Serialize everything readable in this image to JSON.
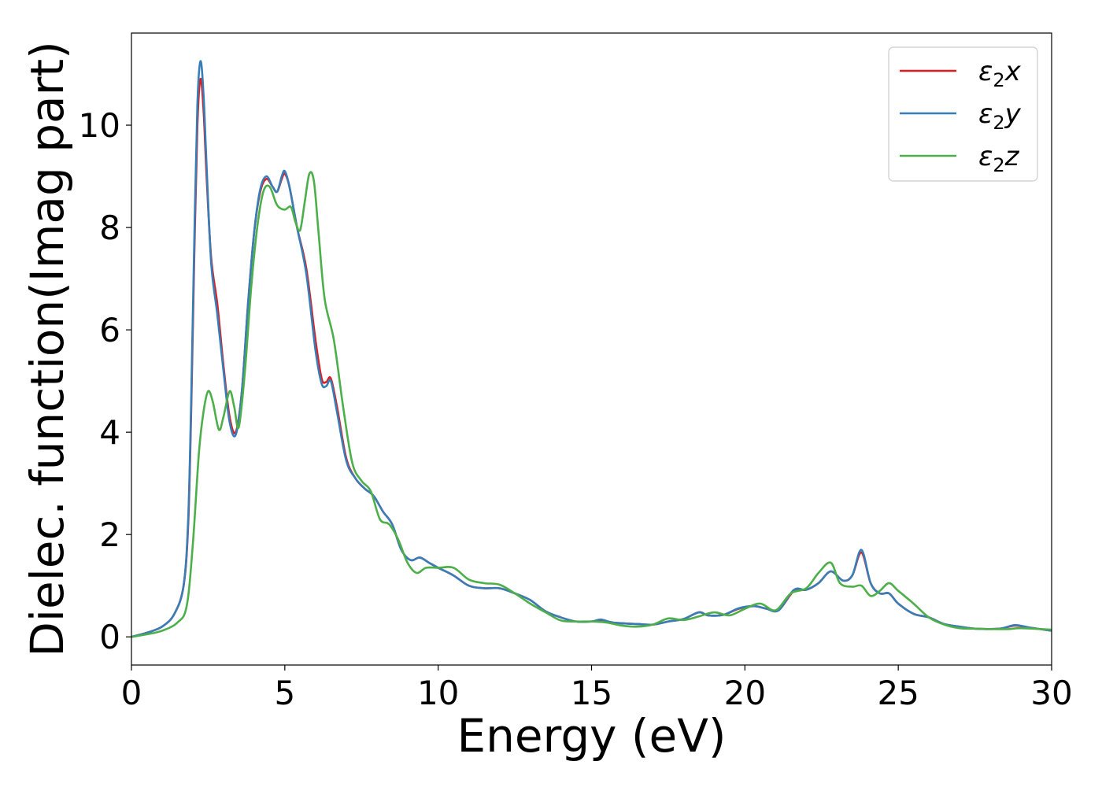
{
  "chart_data": {
    "type": "line",
    "title": "",
    "xlabel": "Energy (eV)",
    "ylabel": "Dielec. function(Imag part)",
    "xlim": [
      0,
      30
    ],
    "ylim": [
      -0.55,
      11.8
    ],
    "xticks": [
      0,
      5,
      10,
      15,
      20,
      25,
      30
    ],
    "yticks": [
      0,
      2,
      4,
      6,
      8,
      10
    ],
    "grid": false,
    "legend_position": "top-right",
    "series": [
      {
        "name": "ε₂x",
        "label_main": "ε",
        "label_sub": "2",
        "label_axis": "x",
        "color": "#e41a1c",
        "points": [
          [
            0,
            0.0
          ],
          [
            0.5,
            0.08
          ],
          [
            1.0,
            0.2
          ],
          [
            1.4,
            0.45
          ],
          [
            1.7,
            1.0
          ],
          [
            1.85,
            2.2
          ],
          [
            1.95,
            4.5
          ],
          [
            2.05,
            7.5
          ],
          [
            2.15,
            10.0
          ],
          [
            2.25,
            10.9
          ],
          [
            2.35,
            10.3
          ],
          [
            2.45,
            9.0
          ],
          [
            2.6,
            7.4
          ],
          [
            2.8,
            6.5
          ],
          [
            3.0,
            5.3
          ],
          [
            3.2,
            4.3
          ],
          [
            3.4,
            4.0
          ],
          [
            3.6,
            4.8
          ],
          [
            3.8,
            6.5
          ],
          [
            4.0,
            7.9
          ],
          [
            4.2,
            8.7
          ],
          [
            4.4,
            8.95
          ],
          [
            4.6,
            8.8
          ],
          [
            4.75,
            8.7
          ],
          [
            4.9,
            8.95
          ],
          [
            5.0,
            9.05
          ],
          [
            5.15,
            8.8
          ],
          [
            5.4,
            8.0
          ],
          [
            5.7,
            7.2
          ],
          [
            6.0,
            5.8
          ],
          [
            6.2,
            5.05
          ],
          [
            6.35,
            4.98
          ],
          [
            6.5,
            5.05
          ],
          [
            6.7,
            4.5
          ],
          [
            7.0,
            3.5
          ],
          [
            7.3,
            3.1
          ],
          [
            7.6,
            2.9
          ],
          [
            7.9,
            2.75
          ],
          [
            8.2,
            2.45
          ],
          [
            8.5,
            2.2
          ],
          [
            8.8,
            1.7
          ],
          [
            9.1,
            1.5
          ],
          [
            9.4,
            1.55
          ],
          [
            9.7,
            1.45
          ],
          [
            10.0,
            1.35
          ],
          [
            10.5,
            1.2
          ],
          [
            11.0,
            1.0
          ],
          [
            11.5,
            0.95
          ],
          [
            12.0,
            0.95
          ],
          [
            12.5,
            0.85
          ],
          [
            13.0,
            0.72
          ],
          [
            13.5,
            0.5
          ],
          [
            14.0,
            0.38
          ],
          [
            14.5,
            0.3
          ],
          [
            15.0,
            0.3
          ],
          [
            15.3,
            0.33
          ],
          [
            15.7,
            0.28
          ],
          [
            16.5,
            0.25
          ],
          [
            17.0,
            0.24
          ],
          [
            17.5,
            0.3
          ],
          [
            18.0,
            0.35
          ],
          [
            18.5,
            0.48
          ],
          [
            18.8,
            0.42
          ],
          [
            19.3,
            0.43
          ],
          [
            19.8,
            0.55
          ],
          [
            20.3,
            0.6
          ],
          [
            20.7,
            0.55
          ],
          [
            21.1,
            0.52
          ],
          [
            21.6,
            0.9
          ],
          [
            22.0,
            0.92
          ],
          [
            22.4,
            1.05
          ],
          [
            22.8,
            1.28
          ],
          [
            23.2,
            1.1
          ],
          [
            23.5,
            1.2
          ],
          [
            23.8,
            1.65
          ],
          [
            24.1,
            1.05
          ],
          [
            24.4,
            0.85
          ],
          [
            24.7,
            0.85
          ],
          [
            25.0,
            0.65
          ],
          [
            25.5,
            0.45
          ],
          [
            26.0,
            0.38
          ],
          [
            26.5,
            0.25
          ],
          [
            27.0,
            0.2
          ],
          [
            27.5,
            0.16
          ],
          [
            28.3,
            0.16
          ],
          [
            28.8,
            0.22
          ],
          [
            29.3,
            0.18
          ],
          [
            30.0,
            0.12
          ]
        ]
      },
      {
        "name": "ε₂y",
        "label_main": "ε",
        "label_sub": "2",
        "label_axis": "y",
        "color": "#377eb8",
        "points": [
          [
            0,
            0.0
          ],
          [
            0.5,
            0.08
          ],
          [
            1.0,
            0.2
          ],
          [
            1.4,
            0.45
          ],
          [
            1.7,
            1.0
          ],
          [
            1.85,
            2.3
          ],
          [
            1.95,
            4.7
          ],
          [
            2.05,
            7.8
          ],
          [
            2.15,
            10.4
          ],
          [
            2.25,
            11.25
          ],
          [
            2.35,
            10.6
          ],
          [
            2.45,
            9.2
          ],
          [
            2.6,
            7.3
          ],
          [
            2.8,
            6.3
          ],
          [
            3.0,
            5.2
          ],
          [
            3.2,
            4.2
          ],
          [
            3.4,
            3.95
          ],
          [
            3.6,
            4.8
          ],
          [
            3.8,
            6.5
          ],
          [
            4.0,
            7.9
          ],
          [
            4.2,
            8.75
          ],
          [
            4.4,
            9.0
          ],
          [
            4.6,
            8.8
          ],
          [
            4.75,
            8.7
          ],
          [
            4.9,
            9.0
          ],
          [
            5.0,
            9.1
          ],
          [
            5.15,
            8.8
          ],
          [
            5.4,
            8.0
          ],
          [
            5.7,
            7.1
          ],
          [
            6.0,
            5.6
          ],
          [
            6.2,
            4.95
          ],
          [
            6.35,
            4.9
          ],
          [
            6.5,
            5.0
          ],
          [
            6.7,
            4.4
          ],
          [
            7.0,
            3.45
          ],
          [
            7.3,
            3.1
          ],
          [
            7.6,
            2.9
          ],
          [
            7.9,
            2.75
          ],
          [
            8.2,
            2.45
          ],
          [
            8.5,
            2.2
          ],
          [
            8.8,
            1.7
          ],
          [
            9.1,
            1.5
          ],
          [
            9.4,
            1.55
          ],
          [
            9.7,
            1.45
          ],
          [
            10.0,
            1.35
          ],
          [
            10.5,
            1.2
          ],
          [
            11.0,
            1.0
          ],
          [
            11.5,
            0.95
          ],
          [
            12.0,
            0.95
          ],
          [
            12.5,
            0.85
          ],
          [
            13.0,
            0.72
          ],
          [
            13.5,
            0.5
          ],
          [
            14.0,
            0.38
          ],
          [
            14.5,
            0.3
          ],
          [
            15.0,
            0.3
          ],
          [
            15.3,
            0.34
          ],
          [
            15.7,
            0.28
          ],
          [
            16.5,
            0.25
          ],
          [
            17.0,
            0.24
          ],
          [
            17.5,
            0.3
          ],
          [
            18.0,
            0.35
          ],
          [
            18.5,
            0.48
          ],
          [
            18.8,
            0.42
          ],
          [
            19.3,
            0.43
          ],
          [
            19.8,
            0.56
          ],
          [
            20.3,
            0.6
          ],
          [
            20.7,
            0.55
          ],
          [
            21.1,
            0.52
          ],
          [
            21.6,
            0.92
          ],
          [
            22.0,
            0.92
          ],
          [
            22.4,
            1.05
          ],
          [
            22.8,
            1.28
          ],
          [
            23.2,
            1.1
          ],
          [
            23.5,
            1.2
          ],
          [
            23.8,
            1.7
          ],
          [
            24.1,
            1.05
          ],
          [
            24.4,
            0.85
          ],
          [
            24.7,
            0.85
          ],
          [
            25.0,
            0.65
          ],
          [
            25.5,
            0.45
          ],
          [
            26.0,
            0.38
          ],
          [
            26.5,
            0.25
          ],
          [
            27.0,
            0.2
          ],
          [
            27.5,
            0.16
          ],
          [
            28.3,
            0.16
          ],
          [
            28.8,
            0.23
          ],
          [
            29.3,
            0.18
          ],
          [
            30.0,
            0.12
          ]
        ]
      },
      {
        "name": "ε₂z",
        "label_main": "ε",
        "label_sub": "2",
        "label_axis": "z",
        "color": "#4daf4a",
        "points": [
          [
            0,
            0.0
          ],
          [
            0.5,
            0.05
          ],
          [
            1.0,
            0.12
          ],
          [
            1.5,
            0.28
          ],
          [
            1.8,
            0.6
          ],
          [
            2.0,
            1.8
          ],
          [
            2.2,
            3.6
          ],
          [
            2.35,
            4.4
          ],
          [
            2.5,
            4.8
          ],
          [
            2.65,
            4.6
          ],
          [
            2.85,
            4.05
          ],
          [
            3.0,
            4.3
          ],
          [
            3.2,
            4.8
          ],
          [
            3.35,
            4.5
          ],
          [
            3.5,
            4.1
          ],
          [
            3.7,
            5.2
          ],
          [
            3.9,
            6.8
          ],
          [
            4.1,
            8.0
          ],
          [
            4.3,
            8.7
          ],
          [
            4.5,
            8.8
          ],
          [
            4.7,
            8.5
          ],
          [
            4.8,
            8.4
          ],
          [
            5.0,
            8.35
          ],
          [
            5.2,
            8.4
          ],
          [
            5.35,
            8.1
          ],
          [
            5.5,
            7.95
          ],
          [
            5.65,
            8.5
          ],
          [
            5.8,
            9.05
          ],
          [
            5.95,
            8.9
          ],
          [
            6.1,
            7.9
          ],
          [
            6.3,
            6.6
          ],
          [
            6.6,
            5.8
          ],
          [
            6.9,
            4.5
          ],
          [
            7.2,
            3.4
          ],
          [
            7.5,
            3.05
          ],
          [
            7.8,
            2.85
          ],
          [
            8.1,
            2.3
          ],
          [
            8.4,
            2.2
          ],
          [
            8.7,
            1.9
          ],
          [
            9.0,
            1.45
          ],
          [
            9.3,
            1.25
          ],
          [
            9.6,
            1.35
          ],
          [
            10.0,
            1.35
          ],
          [
            10.5,
            1.35
          ],
          [
            11.0,
            1.12
          ],
          [
            11.5,
            1.05
          ],
          [
            12.0,
            1.02
          ],
          [
            12.5,
            0.85
          ],
          [
            13.0,
            0.65
          ],
          [
            13.5,
            0.48
          ],
          [
            14.0,
            0.32
          ],
          [
            14.5,
            0.3
          ],
          [
            15.0,
            0.3
          ],
          [
            15.5,
            0.28
          ],
          [
            16.0,
            0.22
          ],
          [
            16.5,
            0.2
          ],
          [
            17.0,
            0.24
          ],
          [
            17.5,
            0.36
          ],
          [
            18.0,
            0.33
          ],
          [
            18.5,
            0.4
          ],
          [
            19.0,
            0.48
          ],
          [
            19.5,
            0.42
          ],
          [
            20.0,
            0.55
          ],
          [
            20.5,
            0.65
          ],
          [
            21.0,
            0.52
          ],
          [
            21.5,
            0.85
          ],
          [
            22.0,
            0.95
          ],
          [
            22.4,
            1.25
          ],
          [
            22.8,
            1.45
          ],
          [
            23.1,
            1.05
          ],
          [
            23.5,
            0.98
          ],
          [
            23.8,
            1.0
          ],
          [
            24.1,
            0.8
          ],
          [
            24.4,
            0.9
          ],
          [
            24.7,
            1.05
          ],
          [
            25.0,
            0.9
          ],
          [
            25.5,
            0.65
          ],
          [
            26.0,
            0.38
          ],
          [
            26.5,
            0.24
          ],
          [
            27.0,
            0.17
          ],
          [
            27.5,
            0.16
          ],
          [
            28.5,
            0.15
          ],
          [
            29.0,
            0.17
          ],
          [
            30.0,
            0.14
          ]
        ]
      }
    ]
  }
}
